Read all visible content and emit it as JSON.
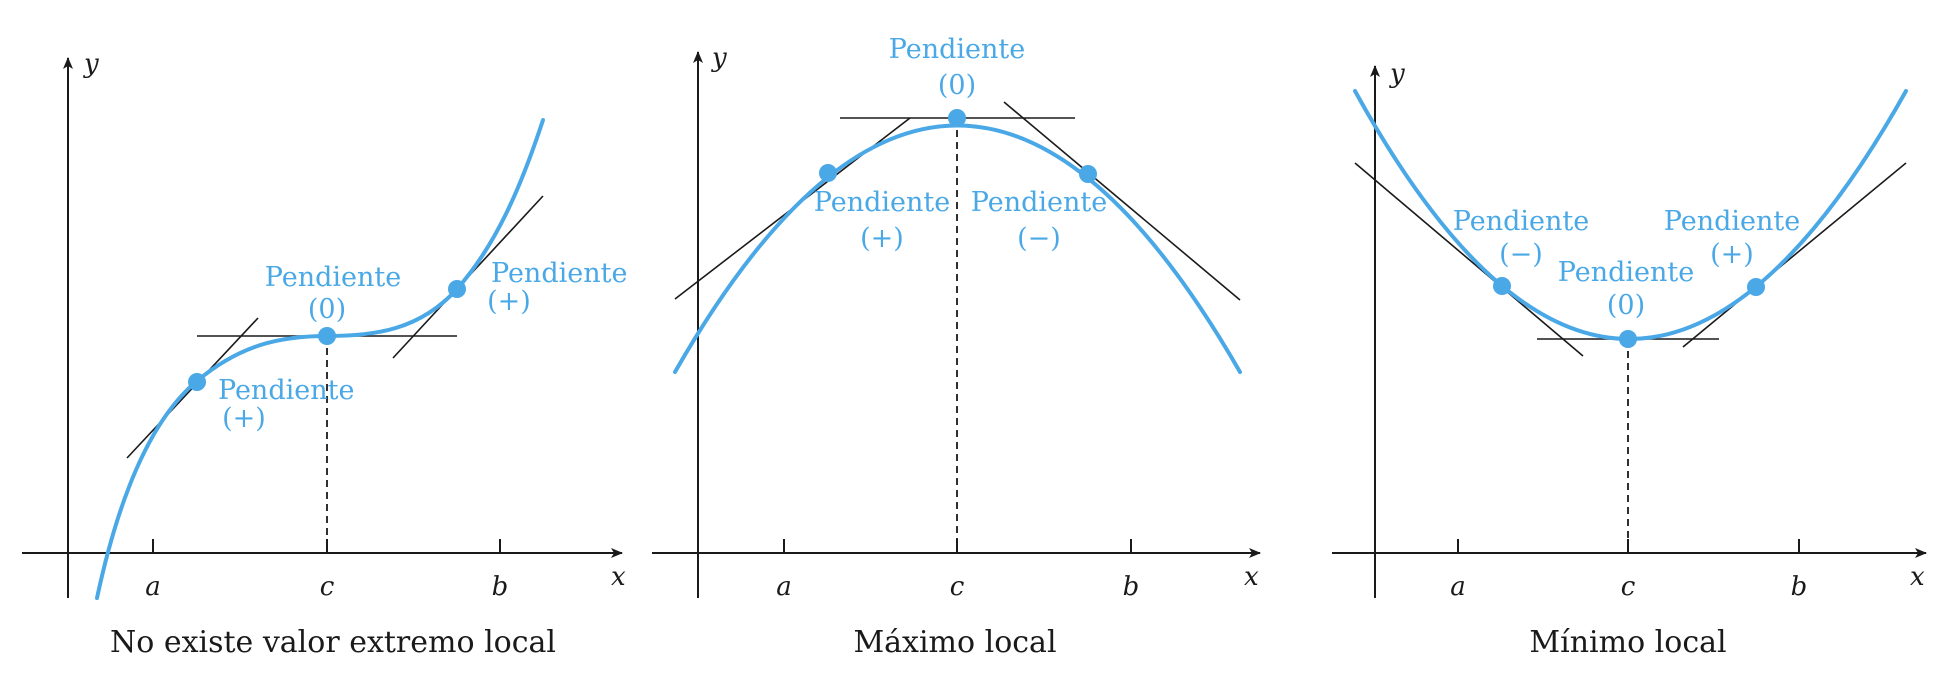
{
  "colors": {
    "curve": "#4aa8e6",
    "axes": "#1a1a1a",
    "background": "#ffffff"
  },
  "panels": [
    {
      "axis_x": "x",
      "axis_y": "y",
      "ticks": {
        "a": "a",
        "c": "c",
        "b": "b"
      },
      "labels": {
        "left_word": "Pendiente",
        "left_sign": "(+)",
        "mid_word": "Pendiente",
        "mid_sign": "(0)",
        "right_word": "Pendiente",
        "right_sign": "(+)"
      },
      "caption": "No existe valor extremo local"
    },
    {
      "axis_x": "x",
      "axis_y": "y",
      "ticks": {
        "a": "a",
        "c": "c",
        "b": "b"
      },
      "labels": {
        "left_word": "Pendiente",
        "left_sign": "(+)",
        "mid_word": "Pendiente",
        "mid_sign": "(0)",
        "right_word": "Pendiente",
        "right_sign": "(−)"
      },
      "caption": "Máximo local"
    },
    {
      "axis_x": "x",
      "axis_y": "y",
      "ticks": {
        "a": "a",
        "c": "c",
        "b": "b"
      },
      "labels": {
        "left_word": "Pendiente",
        "left_sign": "(−)",
        "mid_word": "Pendiente",
        "mid_sign": "(0)",
        "right_word": "Pendiente",
        "right_sign": "(+)"
      },
      "caption": "Mínimo local"
    }
  ]
}
